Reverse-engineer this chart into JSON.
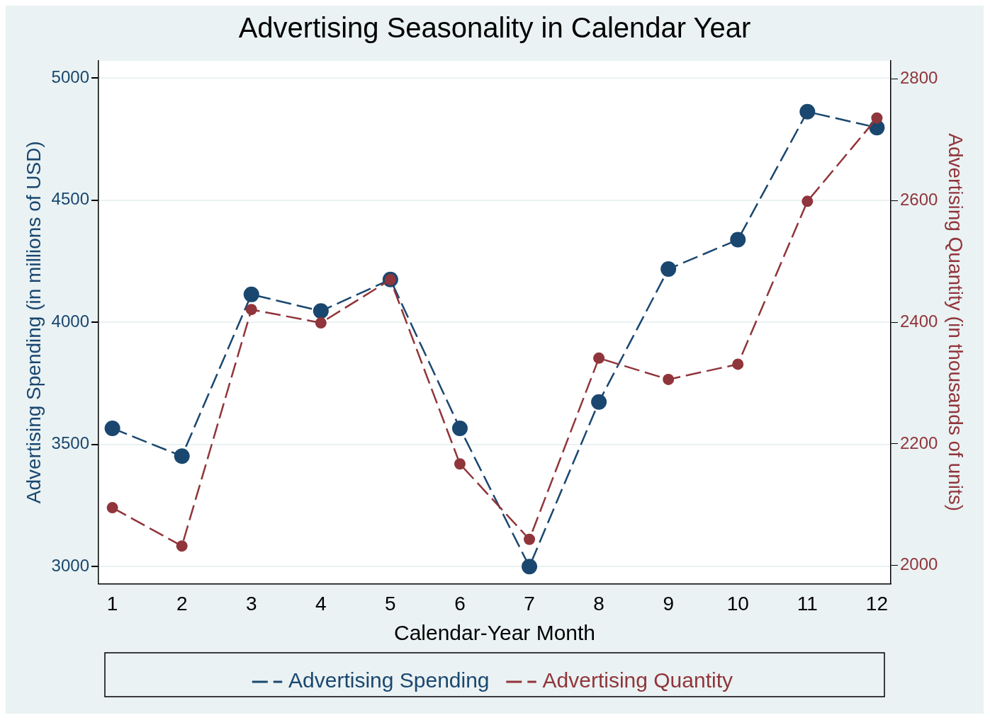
{
  "chart_data": {
    "type": "line",
    "title": "Advertising Seasonality in Calendar Year",
    "xlabel": "Calendar-Year Month",
    "ylabel": "Advertising Spending (in millions of USD)",
    "y2label": "Advertising Quantity (in thousands of units)",
    "x": [
      1,
      2,
      3,
      4,
      5,
      6,
      7,
      8,
      9,
      10,
      11,
      12
    ],
    "xlim": [
      0.8,
      12.2
    ],
    "xticks": [
      1,
      2,
      3,
      4,
      5,
      6,
      7,
      8,
      9,
      10,
      11,
      12
    ],
    "ylim": [
      2930,
      5070
    ],
    "yticks": [
      3000,
      3500,
      4000,
      4500,
      5000
    ],
    "y2lim": [
      1970,
      2830
    ],
    "y2ticks": [
      2000,
      2200,
      2400,
      2600,
      2800
    ],
    "grid": "y",
    "legend": "bottom",
    "marker": "circle",
    "series": [
      {
        "name": "Advertising Spending",
        "color": "#1a476f",
        "line_style": "dashed",
        "values": [
          3566,
          3452,
          4114,
          4046,
          4175,
          3566,
          3000,
          3674,
          4218,
          4338,
          4862,
          4797
        ]
      },
      {
        "name": "Advertising Quantity",
        "color": "#90353b",
        "line_style": "dashed",
        "axis": "y2",
        "values": [
          2095,
          2032,
          2421,
          2399,
          2470,
          2167,
          2043,
          2341,
          2306,
          2331,
          2599,
          2736
        ]
      }
    ]
  }
}
